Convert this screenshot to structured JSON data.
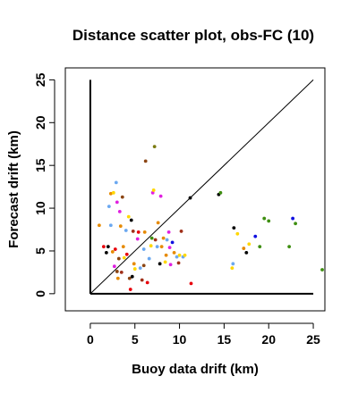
{
  "chart_data": {
    "type": "scatter",
    "title": "Distance scatter plot, obs-FC (10)",
    "xlabel": "Buoy data drift (km)",
    "ylabel": "Forecast drift (km)",
    "xlim": [
      -2.8,
      26.3
    ],
    "ylim": [
      -2,
      26.4
    ],
    "xticks": [
      0,
      5,
      10,
      15,
      20,
      25
    ],
    "yticks": [
      0,
      5,
      10,
      15,
      20,
      25
    ],
    "reference_lines": [
      {
        "name": "diagonal",
        "points": [
          [
            0,
            0
          ],
          [
            25,
            25
          ]
        ]
      },
      {
        "name": "x-axis line",
        "points": [
          [
            0,
            0
          ],
          [
            25,
            0
          ]
        ]
      },
      {
        "name": "y-axis line",
        "points": [
          [
            0,
            0
          ],
          [
            0,
            25
          ]
        ]
      }
    ],
    "colors": {
      "orange": "#E68A00",
      "black": "#000000",
      "red": "#E8000B",
      "magenta": "#E020E0",
      "yellow": "#FFD700",
      "blue": "#1010E0",
      "lightblue": "#6BA8F0",
      "green": "#3E8E10",
      "olive": "#7A7A10",
      "brown": "#8B4513",
      "darkred": "#A0301A"
    },
    "points": [
      {
        "x": 1.0,
        "y": 8.0,
        "c": "orange"
      },
      {
        "x": 1.5,
        "y": 5.5,
        "c": "red"
      },
      {
        "x": 1.8,
        "y": 4.8,
        "c": "black"
      },
      {
        "x": 2.0,
        "y": 5.5,
        "c": "black"
      },
      {
        "x": 2.1,
        "y": 10.2,
        "c": "lightblue"
      },
      {
        "x": 2.3,
        "y": 8.0,
        "c": "lightblue"
      },
      {
        "x": 2.3,
        "y": 11.7,
        "c": "orange"
      },
      {
        "x": 2.5,
        "y": 4.9,
        "c": "orange"
      },
      {
        "x": 2.6,
        "y": 11.8,
        "c": "yellow"
      },
      {
        "x": 2.7,
        "y": 3.2,
        "c": "magenta"
      },
      {
        "x": 2.8,
        "y": 5.2,
        "c": "red"
      },
      {
        "x": 2.9,
        "y": 13.0,
        "c": "lightblue"
      },
      {
        "x": 3.0,
        "y": 10.7,
        "c": "magenta"
      },
      {
        "x": 3.0,
        "y": 2.6,
        "c": "brown"
      },
      {
        "x": 3.1,
        "y": 1.8,
        "c": "orange"
      },
      {
        "x": 3.2,
        "y": 4.1,
        "c": "brown"
      },
      {
        "x": 3.3,
        "y": 9.6,
        "c": "magenta"
      },
      {
        "x": 3.4,
        "y": 7.9,
        "c": "orange"
      },
      {
        "x": 3.5,
        "y": 2.5,
        "c": "darkred"
      },
      {
        "x": 3.6,
        "y": 11.3,
        "c": "brown"
      },
      {
        "x": 3.7,
        "y": 5.5,
        "c": "orange"
      },
      {
        "x": 3.8,
        "y": 4.2,
        "c": "yellow"
      },
      {
        "x": 4.0,
        "y": 7.4,
        "c": "lightblue"
      },
      {
        "x": 4.1,
        "y": 4.6,
        "c": "red"
      },
      {
        "x": 4.3,
        "y": 9.0,
        "c": "yellow"
      },
      {
        "x": 4.4,
        "y": 1.8,
        "c": "brown"
      },
      {
        "x": 4.5,
        "y": 0.5,
        "c": "red"
      },
      {
        "x": 4.6,
        "y": 8.6,
        "c": "black"
      },
      {
        "x": 4.7,
        "y": 2.0,
        "c": "black"
      },
      {
        "x": 4.8,
        "y": 7.3,
        "c": "darkred"
      },
      {
        "x": 4.9,
        "y": 3.5,
        "c": "orange"
      },
      {
        "x": 5.0,
        "y": 2.9,
        "c": "yellow"
      },
      {
        "x": 5.3,
        "y": 6.4,
        "c": "magenta"
      },
      {
        "x": 5.4,
        "y": 7.2,
        "c": "red"
      },
      {
        "x": 5.6,
        "y": 3.0,
        "c": "lightblue"
      },
      {
        "x": 5.8,
        "y": 1.6,
        "c": "darkred"
      },
      {
        "x": 6.0,
        "y": 5.2,
        "c": "lightblue"
      },
      {
        "x": 6.0,
        "y": 3.3,
        "c": "brown"
      },
      {
        "x": 6.1,
        "y": 7.2,
        "c": "orange"
      },
      {
        "x": 6.2,
        "y": 15.5,
        "c": "brown"
      },
      {
        "x": 6.4,
        "y": 1.3,
        "c": "red"
      },
      {
        "x": 6.6,
        "y": 4.1,
        "c": "lightblue"
      },
      {
        "x": 6.8,
        "y": 5.6,
        "c": "yellow"
      },
      {
        "x": 6.9,
        "y": 6.5,
        "c": "green"
      },
      {
        "x": 7.0,
        "y": 11.8,
        "c": "magenta"
      },
      {
        "x": 7.1,
        "y": 12.1,
        "c": "yellow"
      },
      {
        "x": 7.2,
        "y": 17.2,
        "c": "olive"
      },
      {
        "x": 7.3,
        "y": 6.3,
        "c": "darkred"
      },
      {
        "x": 7.5,
        "y": 5.5,
        "c": "lightblue"
      },
      {
        "x": 7.6,
        "y": 8.3,
        "c": "orange"
      },
      {
        "x": 7.8,
        "y": 3.5,
        "c": "black"
      },
      {
        "x": 7.9,
        "y": 11.4,
        "c": "magenta"
      },
      {
        "x": 8.0,
        "y": 5.5,
        "c": "orange"
      },
      {
        "x": 8.2,
        "y": 6.5,
        "c": "orange"
      },
      {
        "x": 8.4,
        "y": 3.7,
        "c": "yellow"
      },
      {
        "x": 8.5,
        "y": 4.5,
        "c": "orange"
      },
      {
        "x": 8.6,
        "y": 6.3,
        "c": "lightblue"
      },
      {
        "x": 8.8,
        "y": 7.2,
        "c": "magenta"
      },
      {
        "x": 8.9,
        "y": 5.4,
        "c": "magenta"
      },
      {
        "x": 9.0,
        "y": 3.4,
        "c": "magenta"
      },
      {
        "x": 9.2,
        "y": 6.0,
        "c": "blue"
      },
      {
        "x": 9.4,
        "y": 4.8,
        "c": "orange"
      },
      {
        "x": 9.7,
        "y": 4.3,
        "c": "lightblue"
      },
      {
        "x": 9.9,
        "y": 3.6,
        "c": "darkred"
      },
      {
        "x": 10.0,
        "y": 4.5,
        "c": "yellow"
      },
      {
        "x": 10.2,
        "y": 7.3,
        "c": "darkred"
      },
      {
        "x": 10.4,
        "y": 4.3,
        "c": "lightblue"
      },
      {
        "x": 10.6,
        "y": 4.5,
        "c": "yellow"
      },
      {
        "x": 11.2,
        "y": 11.2,
        "c": "black"
      },
      {
        "x": 11.3,
        "y": 1.2,
        "c": "red"
      },
      {
        "x": 14.4,
        "y": 11.6,
        "c": "black"
      },
      {
        "x": 14.6,
        "y": 11.8,
        "c": "green"
      },
      {
        "x": 15.9,
        "y": 3.0,
        "c": "yellow"
      },
      {
        "x": 16.0,
        "y": 3.5,
        "c": "lightblue"
      },
      {
        "x": 16.1,
        "y": 7.7,
        "c": "black"
      },
      {
        "x": 16.5,
        "y": 7.0,
        "c": "yellow"
      },
      {
        "x": 17.2,
        "y": 5.3,
        "c": "orange"
      },
      {
        "x": 17.5,
        "y": 4.8,
        "c": "black"
      },
      {
        "x": 17.8,
        "y": 5.8,
        "c": "yellow"
      },
      {
        "x": 18.5,
        "y": 6.7,
        "c": "blue"
      },
      {
        "x": 19.0,
        "y": 5.5,
        "c": "green"
      },
      {
        "x": 19.5,
        "y": 8.8,
        "c": "green"
      },
      {
        "x": 20.0,
        "y": 8.5,
        "c": "green"
      },
      {
        "x": 22.3,
        "y": 5.5,
        "c": "green"
      },
      {
        "x": 22.7,
        "y": 8.8,
        "c": "blue"
      },
      {
        "x": 23.0,
        "y": 8.2,
        "c": "green"
      },
      {
        "x": 26.0,
        "y": 2.8,
        "c": "green"
      }
    ]
  }
}
